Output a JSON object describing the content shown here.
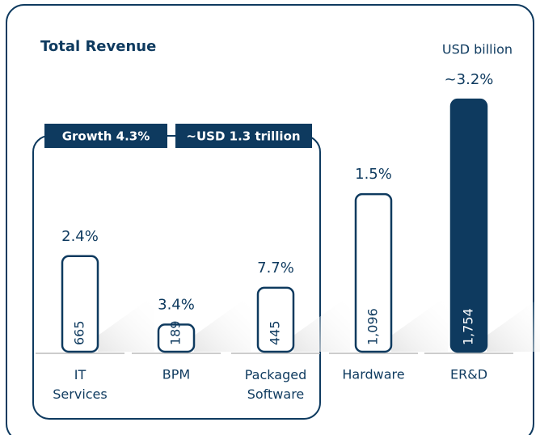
{
  "chart_data": {
    "type": "bar",
    "title": "Total Revenue",
    "unit_label": "USD billion",
    "annotations": [
      "Growth 4.3%",
      "~USD 1.3 trillion"
    ],
    "categories": [
      "IT Services",
      "BPM",
      "Packaged Software",
      "Hardware",
      "ER&D"
    ],
    "values": [
      665,
      189,
      445,
      1096,
      1754
    ],
    "value_labels": [
      "665",
      "189",
      "445",
      "1,096",
      "1,754"
    ],
    "growth_labels": [
      "2.4%",
      "3.4%",
      "7.7%",
      "1.5%",
      "~3.2%"
    ],
    "filled": [
      false,
      false,
      false,
      false,
      true
    ],
    "color": "#0e3a5f",
    "ylim": [
      0,
      1800
    ]
  }
}
